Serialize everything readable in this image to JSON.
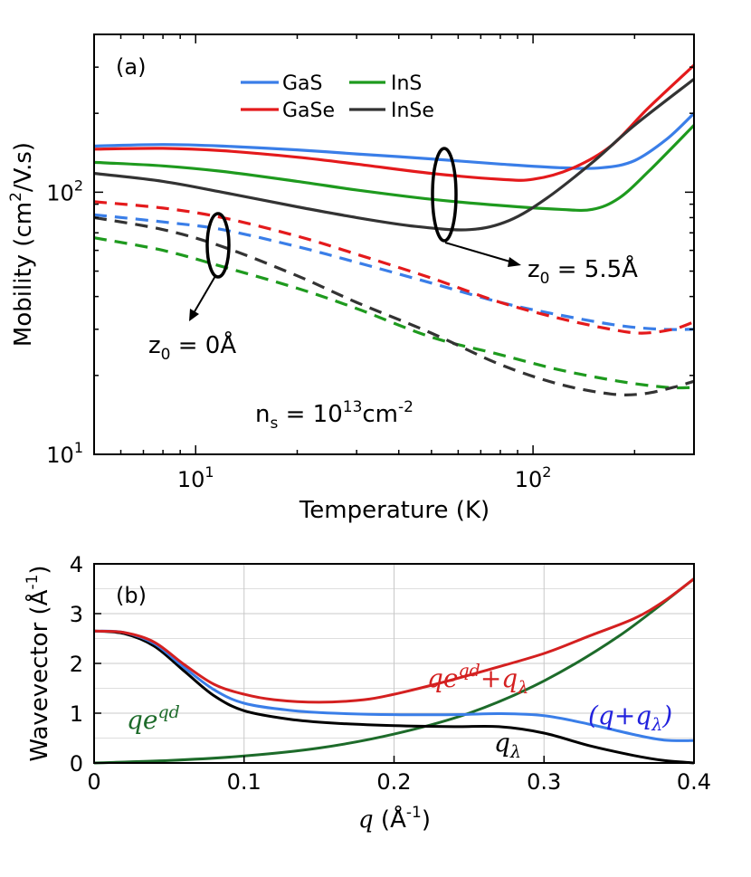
{
  "chart_data": [
    {
      "panel": "(a)",
      "type": "line",
      "xscale": "log",
      "yscale": "log",
      "xlabel": "Temperature (K)",
      "ylabel": "Mobility (cm²/V.s)",
      "xlim": [
        5,
        300
      ],
      "ylim": [
        10,
        400
      ],
      "x_ticks": [
        {
          "v": 10,
          "base": "10",
          "exp": "1"
        },
        {
          "v": 100,
          "base": "10",
          "exp": "2"
        }
      ],
      "y_ticks": [
        {
          "v": 10,
          "base": "10",
          "exp": "1"
        },
        {
          "v": 100,
          "base": "10",
          "exp": "2"
        }
      ],
      "legend": [
        {
          "name": "GaS",
          "color": "#3a7ee8"
        },
        {
          "name": "InS",
          "color": "#1e9a1e"
        },
        {
          "name": "GaSe",
          "color": "#e41a1c"
        },
        {
          "name": "InSe",
          "color": "#333333"
        }
      ],
      "series": [
        {
          "name": "GaS",
          "style": "solid",
          "color": "#3a7ee8",
          "points": [
            [
              5,
              150
            ],
            [
              8,
              152
            ],
            [
              12,
              150
            ],
            [
              20,
              145
            ],
            [
              30,
              140
            ],
            [
              50,
              134
            ],
            [
              80,
              128
            ],
            [
              120,
              124
            ],
            [
              160,
              124
            ],
            [
              200,
              132
            ],
            [
              250,
              160
            ],
            [
              300,
              200
            ]
          ]
        },
        {
          "name": "GaSe",
          "style": "solid",
          "color": "#e41a1c",
          "points": [
            [
              5,
              146
            ],
            [
              8,
              147
            ],
            [
              12,
              144
            ],
            [
              20,
              136
            ],
            [
              30,
              128
            ],
            [
              50,
              118
            ],
            [
              80,
              112
            ],
            [
              100,
              112
            ],
            [
              130,
              123
            ],
            [
              170,
              150
            ],
            [
              220,
              210
            ],
            [
              300,
              305
            ]
          ]
        },
        {
          "name": "InS",
          "style": "solid",
          "color": "#1e9a1e",
          "points": [
            [
              5,
              130
            ],
            [
              8,
              126
            ],
            [
              12,
              120
            ],
            [
              20,
              110
            ],
            [
              30,
              102
            ],
            [
              50,
              94
            ],
            [
              80,
              89
            ],
            [
              120,
              86
            ],
            [
              150,
              86
            ],
            [
              180,
              95
            ],
            [
              220,
              120
            ],
            [
              300,
              180
            ]
          ]
        },
        {
          "name": "InSe",
          "style": "solid",
          "color": "#333333",
          "points": [
            [
              5,
              118
            ],
            [
              8,
              110
            ],
            [
              12,
              100
            ],
            [
              20,
              88
            ],
            [
              30,
              80
            ],
            [
              45,
              74
            ],
            [
              65,
              72
            ],
            [
              85,
              78
            ],
            [
              110,
              95
            ],
            [
              150,
              130
            ],
            [
              200,
              180
            ],
            [
              300,
              270
            ]
          ]
        },
        {
          "name": "GaS",
          "style": "dashed",
          "color": "#3a7ee8",
          "points": [
            [
              5,
              82
            ],
            [
              8,
              77
            ],
            [
              12,
              72
            ],
            [
              20,
              62
            ],
            [
              30,
              54
            ],
            [
              50,
              45
            ],
            [
              80,
              38
            ],
            [
              120,
              34
            ],
            [
              180,
              31
            ],
            [
              240,
              30
            ],
            [
              300,
              30
            ]
          ]
        },
        {
          "name": "GaSe",
          "style": "dashed",
          "color": "#e41a1c",
          "points": [
            [
              5,
              92
            ],
            [
              8,
              87
            ],
            [
              12,
              80
            ],
            [
              20,
              68
            ],
            [
              30,
              58
            ],
            [
              50,
              47
            ],
            [
              80,
              38
            ],
            [
              120,
              33
            ],
            [
              170,
              30
            ],
            [
              210,
              29
            ],
            [
              260,
              30
            ],
            [
              300,
              32
            ]
          ]
        },
        {
          "name": "InS",
          "style": "dashed",
          "color": "#1e9a1e",
          "points": [
            [
              5,
              67
            ],
            [
              8,
              60
            ],
            [
              12,
              52
            ],
            [
              20,
              43
            ],
            [
              30,
              36
            ],
            [
              50,
              28
            ],
            [
              80,
              24
            ],
            [
              120,
              21
            ],
            [
              180,
              19
            ],
            [
              250,
              18
            ],
            [
              300,
              18
            ]
          ]
        },
        {
          "name": "InSe",
          "style": "dashed",
          "color": "#333333",
          "points": [
            [
              5,
              80
            ],
            [
              8,
              72
            ],
            [
              12,
              62
            ],
            [
              20,
              48
            ],
            [
              30,
              38
            ],
            [
              50,
              29
            ],
            [
              80,
              22
            ],
            [
              120,
              18.5
            ],
            [
              170,
              17
            ],
            [
              210,
              17
            ],
            [
              260,
              18
            ],
            [
              300,
              19
            ]
          ]
        }
      ],
      "annotations": {
        "z0_large_base": "z",
        "z0_large_sub": "0",
        "z0_large_val": " = 5.5Å",
        "z0_small_base": "z",
        "z0_small_sub": "0",
        "z0_small_val": " = 0Å",
        "ns_base": "n",
        "ns_sub": "s",
        "ns_eq": " = 10",
        "ns_exp": "13",
        "ns_unit": "cm",
        "ns_unit_exp": "-2"
      }
    },
    {
      "panel": "(b)",
      "type": "line",
      "xlabel": "q (Å⁻¹)",
      "ylabel": "Wavevector (Å⁻¹)",
      "xlim": [
        0,
        0.4
      ],
      "ylim": [
        0,
        4
      ],
      "x_ticks": [
        "0",
        "0.1",
        "0.2",
        "0.3",
        "0.4"
      ],
      "y_ticks": [
        "0",
        "1",
        "2",
        "3",
        "4"
      ],
      "series": [
        {
          "name": "qe^{qd}",
          "color": "#1d6b2a",
          "points": [
            [
              0,
              0
            ],
            [
              0.05,
              0.05
            ],
            [
              0.1,
              0.14
            ],
            [
              0.15,
              0.3
            ],
            [
              0.2,
              0.58
            ],
            [
              0.25,
              1.0
            ],
            [
              0.3,
              1.65
            ],
            [
              0.35,
              2.55
            ],
            [
              0.4,
              3.7
            ]
          ]
        },
        {
          "name": "q_λ",
          "color": "#000000",
          "points": [
            [
              0,
              2.65
            ],
            [
              0.02,
              2.6
            ],
            [
              0.04,
              2.35
            ],
            [
              0.06,
              1.85
            ],
            [
              0.08,
              1.35
            ],
            [
              0.1,
              1.05
            ],
            [
              0.13,
              0.88
            ],
            [
              0.16,
              0.8
            ],
            [
              0.2,
              0.75
            ],
            [
              0.24,
              0.73
            ],
            [
              0.27,
              0.73
            ],
            [
              0.3,
              0.6
            ],
            [
              0.33,
              0.35
            ],
            [
              0.36,
              0.15
            ],
            [
              0.38,
              0.05
            ],
            [
              0.4,
              0.0
            ]
          ]
        },
        {
          "name": "(q+q_λ)",
          "color": "#3a7ee8",
          "points": [
            [
              0,
              2.65
            ],
            [
              0.02,
              2.62
            ],
            [
              0.04,
              2.4
            ],
            [
              0.06,
              1.92
            ],
            [
              0.08,
              1.47
            ],
            [
              0.1,
              1.2
            ],
            [
              0.13,
              1.06
            ],
            [
              0.16,
              1.0
            ],
            [
              0.2,
              0.97
            ],
            [
              0.24,
              0.97
            ],
            [
              0.27,
              0.99
            ],
            [
              0.3,
              0.95
            ],
            [
              0.33,
              0.78
            ],
            [
              0.36,
              0.57
            ],
            [
              0.38,
              0.46
            ],
            [
              0.4,
              0.45
            ]
          ]
        },
        {
          "name": "qe^{qd}+q_λ",
          "color": "#d42020",
          "points": [
            [
              0,
              2.65
            ],
            [
              0.02,
              2.62
            ],
            [
              0.04,
              2.43
            ],
            [
              0.06,
              1.98
            ],
            [
              0.08,
              1.58
            ],
            [
              0.1,
              1.38
            ],
            [
              0.12,
              1.27
            ],
            [
              0.15,
              1.22
            ],
            [
              0.18,
              1.27
            ],
            [
              0.2,
              1.38
            ],
            [
              0.23,
              1.6
            ],
            [
              0.26,
              1.85
            ],
            [
              0.3,
              2.2
            ],
            [
              0.33,
              2.55
            ],
            [
              0.36,
              2.9
            ],
            [
              0.38,
              3.25
            ],
            [
              0.4,
              3.7
            ]
          ]
        }
      ],
      "labels": {
        "red_main": "qe",
        "red_sup": "qd",
        "red_plus": "+q",
        "red_sub": "λ",
        "blue_open": "(q+q",
        "blue_sub": "λ",
        "blue_close": ")",
        "green_main": "qe",
        "green_sup": "qd",
        "black_main": "q",
        "black_sub": "λ"
      }
    }
  ],
  "panel_labels": {
    "a": "(a)",
    "b": "(b)"
  },
  "axis_labels": {
    "a_x": "Temperature (K)",
    "a_y_main": "Mobility (cm",
    "a_y_sup": "2",
    "a_y_tail": "/V.s)",
    "b_x_q": "q",
    "b_x_rest": " (Å",
    "b_x_sup": "-1",
    "b_x_close": ")",
    "b_y_main": "Wavevector  (Å",
    "b_y_sup": "-1",
    "b_y_close": ")"
  }
}
